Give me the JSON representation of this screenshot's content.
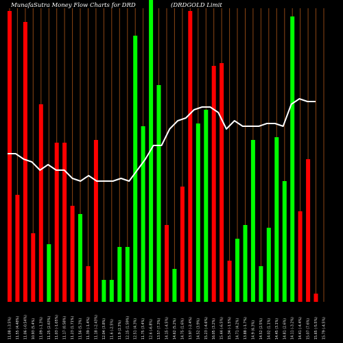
{
  "page_title": "MunafaSutra  Money Flow  Charts for DRD",
  "company_name": "(DRDGOLD Limit",
  "colors": {
    "background": "#000000",
    "gridline": "#8B4513",
    "up": "#00ff00",
    "down": "#ff0000",
    "flow_line": "#ffffff",
    "text": "#ffffff"
  },
  "chart_data": {
    "type": "bar",
    "title": "MunafaSutra  Money Flow  Charts for DRD",
    "subtitle": "(DRDGOLD Limit",
    "grid": true,
    "categories": [
      "11.08 (-3.5%)",
      "11.55 (4.48%)",
      "11.06 (-0.54%)",
      "10.93 (5.4%)",
      "11.09 (-1.3%)",
      "11.25 (2.63%)",
      "11.03 (-1.05%)",
      "11.17 (0.58%)",
      "11.23 (1.71%)",
      "11.56 (5.3%)",
      "11.39 (-1.4%)",
      "11.18 (-2.43%)",
      "12.04 (3.8%)",
      "11.6 (-2.5%)",
      "11.9 (2.3%)",
      "12.15 (1.59%)",
      "12.51 (4.3%)",
      "11.75 (3.4%)",
      "12.6 (-6.8%)",
      "13.57 (7.3%)",
      "14.15 (-4.5%)",
      "14.62 (5.2%)",
      "14.75 (1.6%)",
      "13.97 (-2.4%)",
      "14.52 (3.9%)",
      "15.23 (-4.6%)",
      "16.05 (3.2%)",
      "15.44 (-6.5%)",
      "15.34 (-1.5%)",
      "14.71 (4.2%)",
      "13.88 (-1.7%)",
      "14.9 (6.3%)",
      "14.52 (2.5%)",
      "14.02 (1.1%)",
      "14.45 (3.1%)",
      "14.81 (2.6%)",
      "14.11 (-3.2%)",
      "14.41 (-4.4%)",
      "15.07 (7.6%)",
      "15.65 (-5.5%)",
      "15.79 (-4.5%)"
    ],
    "values": [
      1.06,
      0.39,
      1.02,
      0.25,
      0.72,
      0.21,
      0.58,
      0.58,
      0.35,
      0.32,
      0.13,
      0.59,
      0.08,
      0.08,
      0.2,
      0.2,
      0.97,
      0.64,
      1.15,
      0.79,
      0.28,
      0.12,
      0.42,
      1.06,
      0.65,
      0.7,
      0.86,
      0.87,
      0.15,
      0.23,
      0.28,
      0.59,
      0.13,
      0.27,
      0.6,
      0.44,
      1.04,
      0.33,
      0.52,
      0.03,
      0.0
    ],
    "directions": [
      "down",
      "down",
      "down",
      "down",
      "down",
      "up",
      "down",
      "down",
      "down",
      "up",
      "down",
      "down",
      "up",
      "up",
      "up",
      "up",
      "up",
      "up",
      "up",
      "up",
      "down",
      "up",
      "down",
      "down",
      "up",
      "up",
      "down",
      "down",
      "down",
      "up",
      "up",
      "up",
      "up",
      "up",
      "up",
      "up",
      "up",
      "down",
      "down",
      "down",
      "down"
    ],
    "flow_series": [
      0.54,
      0.54,
      0.52,
      0.51,
      0.48,
      0.5,
      0.48,
      0.48,
      0.45,
      0.44,
      0.46,
      0.44,
      0.44,
      0.44,
      0.45,
      0.44,
      0.48,
      0.52,
      0.57,
      0.57,
      0.63,
      0.66,
      0.67,
      0.7,
      0.71,
      0.71,
      0.69,
      0.63,
      0.66,
      0.64,
      0.64,
      0.64,
      0.65,
      0.65,
      0.64,
      0.72,
      0.74,
      0.73,
      0.73
    ],
    "ylim": [
      0,
      1.1
    ]
  }
}
